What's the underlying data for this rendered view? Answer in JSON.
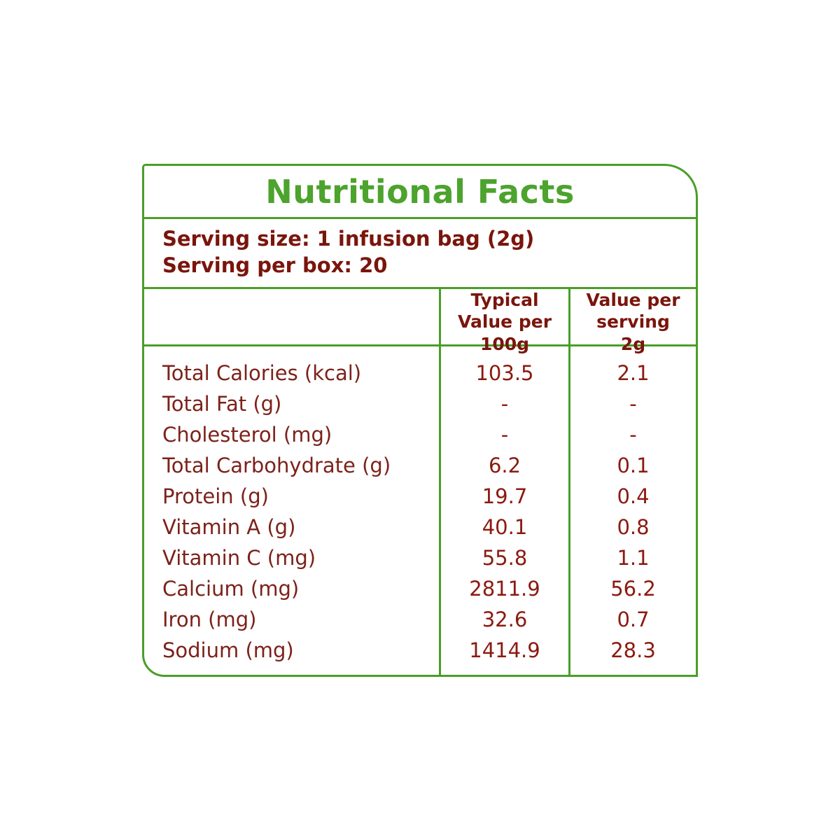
{
  "page": {
    "background_color": "#ffffff"
  },
  "card": {
    "border_color": "#4a9e28",
    "title": "Nutritional Facts",
    "title_color": "#4ca32d",
    "text_color": "#7a150c",
    "serving": {
      "line1": "Serving size: 1 infusion bag (2g)",
      "line2": "Serving per box: 20"
    },
    "table": {
      "header": {
        "col2": "Typical Value per 100g",
        "col3": "Value per serving 2g"
      },
      "rows": [
        {
          "label": "Total Calories (kcal)",
          "per100g": "103.5",
          "per2g": "2.1"
        },
        {
          "label": "Total Fat (g)",
          "per100g": "-",
          "per2g": "-"
        },
        {
          "label": "Cholesterol (mg)",
          "per100g": "-",
          "per2g": "-"
        },
        {
          "label": "Total Carbohydrate (g)",
          "per100g": "6.2",
          "per2g": "0.1"
        },
        {
          "label": "Protein (g)",
          "per100g": "19.7",
          "per2g": "0.4"
        },
        {
          "label": "Vitamin A (g)",
          "per100g": "40.1",
          "per2g": "0.8"
        },
        {
          "label": "Vitamin C (mg)",
          "per100g": "55.8",
          "per2g": "1.1"
        },
        {
          "label": "Calcium (mg)",
          "per100g": "2811.9",
          "per2g": "56.2"
        },
        {
          "label": "Iron (mg)",
          "per100g": "32.6",
          "per2g": "0.7"
        },
        {
          "label": "Sodium (mg)",
          "per100g": "1414.9",
          "per2g": "28.3"
        }
      ]
    }
  }
}
